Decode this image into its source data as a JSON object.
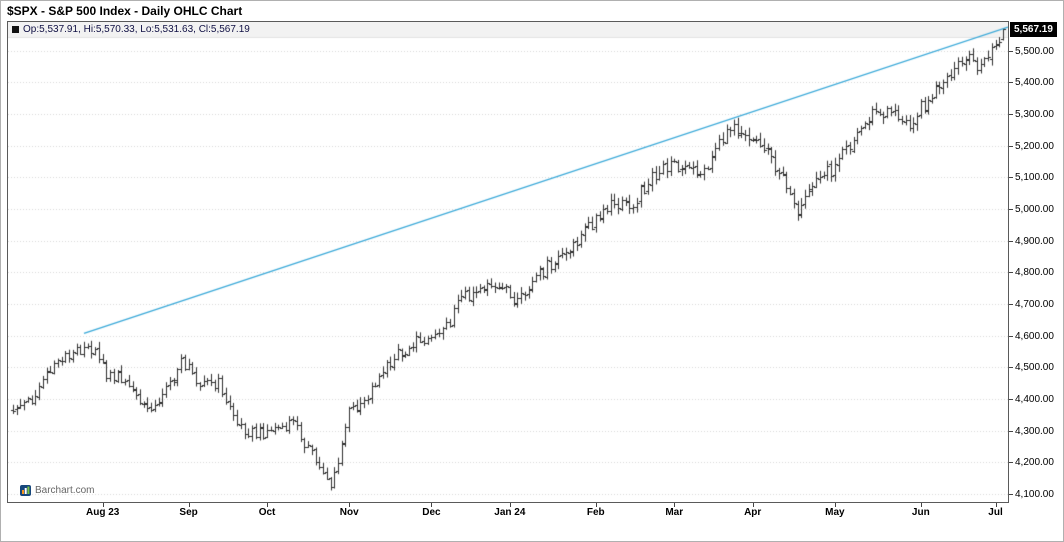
{
  "title": "$SPX - S&P 500 Index - Daily OHLC Chart",
  "legend": {
    "text": "Op:5,537.91, Hi:5,570.33, Lo:5,531.63, Cl:5,567.19"
  },
  "price_callout": "5,567.19",
  "watermark": "Barchart.com",
  "colors": {
    "trendline": "#38a8d8",
    "bars": "#2e2e2e",
    "grid": "#d6d6d6",
    "legend_band": "#f2f2f2",
    "legend_band_border": "#e2e2e2",
    "callout_bg": "#000000",
    "callout_text": "#ffffff",
    "axis_text": "#000000",
    "watermark_text": "#666666"
  },
  "chart_data": {
    "type": "ohlc",
    "title": "$SPX - S&P 500 Index - Daily OHLC Chart",
    "xlabel": "",
    "ylabel": "",
    "ylim": [
      4075,
      5590
    ],
    "grid": "dotted-horizontal",
    "legend_position": "top-left",
    "y_ticks": [
      5500,
      5400,
      5300,
      5200,
      5100,
      5000,
      4900,
      4800,
      4700,
      4600,
      4500,
      4400,
      4300,
      4200,
      4100
    ],
    "x_labels": [
      "Aug 23",
      "Sep",
      "Oct",
      "Nov",
      "Dec",
      "Jan 24",
      "Feb",
      "Mar",
      "Apr",
      "May",
      "Jun",
      "Jul"
    ],
    "start_date": "2023-06-28",
    "bars_per_anchor": 5,
    "weekly_anchor_closes": [
      4376,
      4399,
      4505,
      4536,
      4582,
      4478,
      4464,
      4370,
      4406,
      4516,
      4457,
      4450,
      4320,
      4288,
      4309,
      4328,
      4224,
      4117,
      4358,
      4415,
      4514,
      4559,
      4595,
      4604,
      4719,
      4755,
      4770,
      4697,
      4784,
      4840,
      4891,
      4959,
      5027,
      5006,
      5089,
      5137,
      5124,
      5117,
      5234,
      5254,
      5204,
      5123,
      4967,
      5100,
      5128,
      5223,
      5303,
      5305,
      5278,
      5347,
      5432,
      5465,
      5460,
      5567
    ],
    "last_bar": {
      "open": 5537.91,
      "high": 5570.33,
      "low": 5531.63,
      "close": 5567.19
    },
    "trendline": {
      "start_index": 19,
      "start_price": 4607,
      "end_price": 5574,
      "extends_to_right_edge": true
    }
  }
}
